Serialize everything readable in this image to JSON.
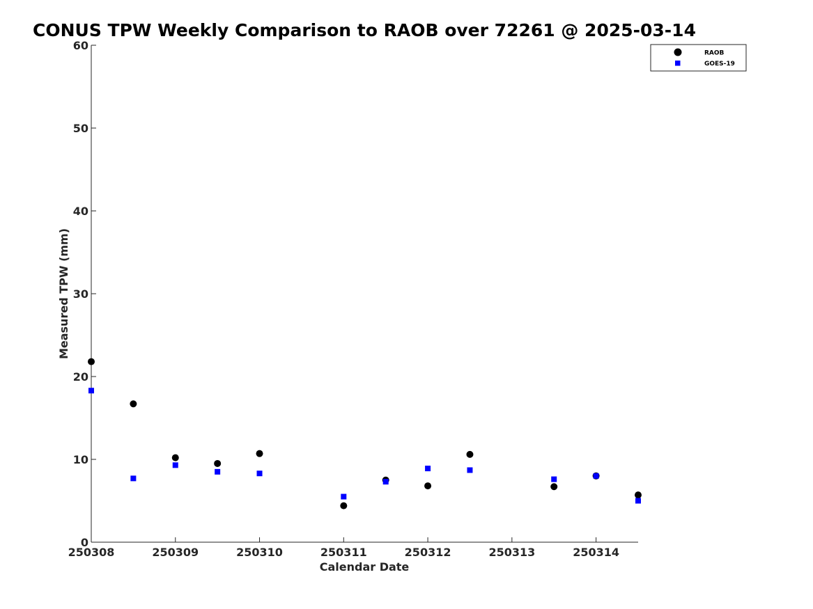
{
  "chart_data": {
    "type": "scatter",
    "title": "CONUS TPW Weekly Comparison to RAOB over 72261 @ 2025-03-14",
    "xlabel": "Calendar Date",
    "ylabel": "Measured TPW (mm)",
    "xlim": [
      0,
      6.5
    ],
    "ylim": [
      0,
      60
    ],
    "xticks": [
      0,
      1,
      2,
      3,
      4,
      5,
      6
    ],
    "xtick_labels": [
      "250308",
      "250309",
      "250310",
      "250311",
      "250312",
      "250313",
      "250314"
    ],
    "yticks": [
      0,
      10,
      20,
      30,
      40,
      50,
      60
    ],
    "ytick_labels": [
      "0",
      "10",
      "20",
      "30",
      "40",
      "50",
      "60"
    ],
    "grid": false,
    "legend_position": "top-right",
    "series": [
      {
        "name": "RAOB",
        "marker": "circle",
        "color": "#000000",
        "x": [
          0,
          0.5,
          1,
          1.5,
          2,
          3,
          3.5,
          4,
          4.5,
          5.5,
          6,
          6.5
        ],
        "y": [
          21.8,
          16.7,
          10.2,
          9.5,
          10.7,
          4.4,
          7.5,
          6.8,
          10.6,
          6.7,
          8.0,
          5.7
        ]
      },
      {
        "name": "GOES-19",
        "marker": "square",
        "color": "#0000ff",
        "x": [
          0,
          0.5,
          1,
          1.5,
          2,
          3,
          3.5,
          4,
          4.5,
          5.5,
          6,
          6.5
        ],
        "y": [
          18.3,
          7.7,
          9.3,
          8.5,
          8.3,
          5.5,
          7.3,
          8.9,
          8.7,
          7.6,
          8.0,
          5.0
        ]
      }
    ]
  }
}
